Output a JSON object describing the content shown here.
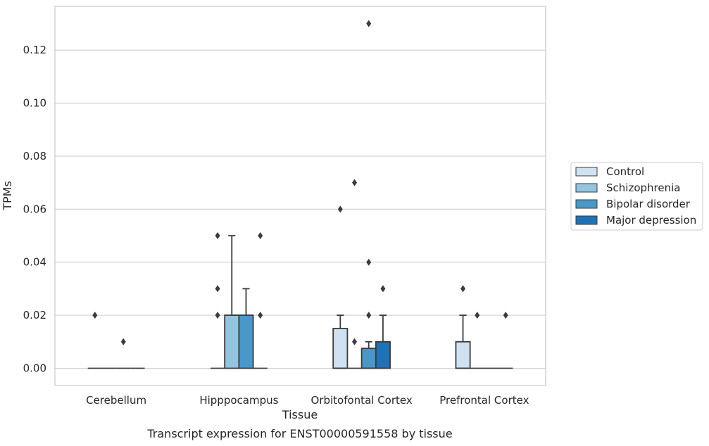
{
  "chart_data": {
    "type": "boxplot",
    "title": "",
    "caption": "Transcript expression for ENST00000591558 by tissue",
    "xlabel": "Tissue",
    "ylabel": "TPMs",
    "ylim": [
      -0.0065,
      0.1365
    ],
    "yticks": [
      0.0,
      0.02,
      0.04,
      0.06,
      0.08,
      0.1,
      0.12
    ],
    "ytick_labels": [
      "0.00",
      "0.02",
      "0.04",
      "0.06",
      "0.08",
      "0.10",
      "0.12"
    ],
    "grid": "horizontal",
    "legend_position": "right",
    "categories": [
      "Cerebellum",
      "Hipppocampus",
      "Orbitofontal Cortex",
      "Prefrontal Cortex"
    ],
    "series": [
      {
        "name": "Control",
        "color": "#d0e1f2",
        "boxes": [
          {
            "q1": 0,
            "median": 0,
            "q3": 0,
            "whisker_low": 0,
            "whisker_high": 0,
            "outliers": [
              0.02
            ]
          },
          {
            "q1": 0,
            "median": 0,
            "q3": 0,
            "whisker_low": 0,
            "whisker_high": 0,
            "outliers": [
              0.02,
              0.03,
              0.05
            ]
          },
          {
            "q1": 0,
            "median": 0,
            "q3": 0.015,
            "whisker_low": 0,
            "whisker_high": 0.02,
            "outliers": [
              0.06
            ]
          },
          {
            "q1": 0,
            "median": 0,
            "q3": 0.01,
            "whisker_low": 0,
            "whisker_high": 0.02,
            "outliers": [
              0.03
            ]
          }
        ]
      },
      {
        "name": "Schizophrenia",
        "color": "#94c4df",
        "boxes": [
          {
            "q1": 0,
            "median": 0,
            "q3": 0,
            "whisker_low": 0,
            "whisker_high": 0,
            "outliers": []
          },
          {
            "q1": 0,
            "median": 0.02,
            "q3": 0.02,
            "whisker_low": 0,
            "whisker_high": 0.05,
            "outliers": []
          },
          {
            "q1": 0,
            "median": 0,
            "q3": 0,
            "whisker_low": 0,
            "whisker_high": 0,
            "outliers": [
              0.01,
              0.07
            ]
          },
          {
            "q1": 0,
            "median": 0,
            "q3": 0,
            "whisker_low": 0,
            "whisker_high": 0,
            "outliers": [
              0.02
            ]
          }
        ]
      },
      {
        "name": "Bipolar disorder",
        "color": "#4a98c9",
        "boxes": [
          {
            "q1": 0,
            "median": 0,
            "q3": 0,
            "whisker_low": 0,
            "whisker_high": 0,
            "outliers": [
              0.01
            ]
          },
          {
            "q1": 0,
            "median": 0.02,
            "q3": 0.02,
            "whisker_low": 0,
            "whisker_high": 0.03,
            "outliers": []
          },
          {
            "q1": 0,
            "median": 0,
            "q3": 0.0075,
            "whisker_low": 0,
            "whisker_high": 0.01,
            "outliers": [
              0.02,
              0.04,
              0.13
            ]
          },
          {
            "q1": 0,
            "median": 0,
            "q3": 0,
            "whisker_low": 0,
            "whisker_high": 0,
            "outliers": []
          }
        ]
      },
      {
        "name": "Major depression",
        "color": "#2171b5",
        "boxes": [
          {
            "q1": 0,
            "median": 0,
            "q3": 0,
            "whisker_low": 0,
            "whisker_high": 0,
            "outliers": []
          },
          {
            "q1": 0,
            "median": 0,
            "q3": 0,
            "whisker_low": 0,
            "whisker_high": 0,
            "outliers": [
              0.02,
              0.05
            ]
          },
          {
            "q1": 0,
            "median": 0,
            "q3": 0.01,
            "whisker_low": 0,
            "whisker_high": 0.02,
            "outliers": [
              0.03
            ]
          },
          {
            "q1": 0,
            "median": 0,
            "q3": 0,
            "whisker_low": 0,
            "whisker_high": 0,
            "outliers": [
              0.02
            ]
          }
        ]
      }
    ]
  }
}
